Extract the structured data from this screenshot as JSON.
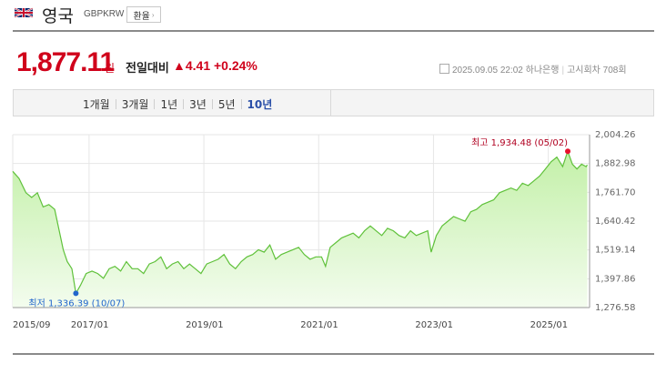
{
  "header": {
    "country": "영국",
    "currency_code": "GBPKRW",
    "fx_button_label": "환율",
    "fx_button_arrow": "›"
  },
  "quote": {
    "price": "1,877.11",
    "unit": "원",
    "change_label": "전일대비",
    "change_arrow": "▲",
    "change_value": "4.41",
    "change_percent": "+0.24%",
    "datetime": "2025.09.05 22:02",
    "source": "하나은행",
    "notice_round": "고시회차 708회"
  },
  "tabs": [
    {
      "label": "1개월",
      "active": false
    },
    {
      "label": "3개월",
      "active": false
    },
    {
      "label": "1년",
      "active": false
    },
    {
      "label": "3년",
      "active": false
    },
    {
      "label": "5년",
      "active": false
    },
    {
      "label": "10년",
      "active": true
    }
  ],
  "colors": {
    "up": "#d0021b",
    "line": "#5fc13a",
    "fill_top": "#c3f0a8",
    "fill_bottom": "#f3fcee",
    "min_marker": "#2266cc",
    "max_marker": "#e8102c"
  },
  "chart_data": {
    "type": "area",
    "ylim": [
      1276.58,
      2004.26
    ],
    "yticks": [
      "2,004.26",
      "1,882.98",
      "1,761.70",
      "1,640.42",
      "1,519.14",
      "1,397.86",
      "1,276.58"
    ],
    "xticks": [
      "2015/09",
      "2017/01",
      "2019/01",
      "2021/01",
      "2023/01",
      "2025/01"
    ],
    "max_label": "최고 1,934.48 (05/02)",
    "min_label": "최저 1,336.39 (10/07)",
    "series": [
      {
        "values": [
          [
            2015.67,
            1850
          ],
          [
            2015.78,
            1820
          ],
          [
            2015.9,
            1760
          ],
          [
            2016.0,
            1740
          ],
          [
            2016.1,
            1760
          ],
          [
            2016.2,
            1700
          ],
          [
            2016.3,
            1710
          ],
          [
            2016.4,
            1690
          ],
          [
            2016.48,
            1600
          ],
          [
            2016.55,
            1520
          ],
          [
            2016.62,
            1470
          ],
          [
            2016.7,
            1440
          ],
          [
            2016.77,
            1336.39
          ],
          [
            2016.85,
            1370
          ],
          [
            2016.95,
            1420
          ],
          [
            2017.05,
            1430
          ],
          [
            2017.15,
            1420
          ],
          [
            2017.25,
            1400
          ],
          [
            2017.35,
            1440
          ],
          [
            2017.45,
            1450
          ],
          [
            2017.55,
            1430
          ],
          [
            2017.65,
            1470
          ],
          [
            2017.75,
            1440
          ],
          [
            2017.85,
            1440
          ],
          [
            2017.95,
            1420
          ],
          [
            2018.05,
            1460
          ],
          [
            2018.15,
            1470
          ],
          [
            2018.25,
            1490
          ],
          [
            2018.35,
            1440
          ],
          [
            2018.45,
            1460
          ],
          [
            2018.55,
            1470
          ],
          [
            2018.65,
            1440
          ],
          [
            2018.75,
            1460
          ],
          [
            2018.85,
            1440
          ],
          [
            2018.95,
            1420
          ],
          [
            2019.05,
            1460
          ],
          [
            2019.15,
            1470
          ],
          [
            2019.25,
            1480
          ],
          [
            2019.35,
            1500
          ],
          [
            2019.45,
            1460
          ],
          [
            2019.55,
            1440
          ],
          [
            2019.65,
            1470
          ],
          [
            2019.75,
            1490
          ],
          [
            2019.85,
            1500
          ],
          [
            2019.95,
            1520
          ],
          [
            2020.05,
            1510
          ],
          [
            2020.15,
            1540
          ],
          [
            2020.25,
            1480
          ],
          [
            2020.35,
            1500
          ],
          [
            2020.45,
            1510
          ],
          [
            2020.55,
            1520
          ],
          [
            2020.65,
            1530
          ],
          [
            2020.75,
            1500
          ],
          [
            2020.85,
            1480
          ],
          [
            2020.95,
            1490
          ],
          [
            2021.05,
            1490
          ],
          [
            2021.12,
            1450
          ],
          [
            2021.2,
            1530
          ],
          [
            2021.3,
            1550
          ],
          [
            2021.4,
            1570
          ],
          [
            2021.5,
            1580
          ],
          [
            2021.6,
            1590
          ],
          [
            2021.7,
            1570
          ],
          [
            2021.8,
            1600
          ],
          [
            2021.9,
            1620
          ],
          [
            2022.0,
            1600
          ],
          [
            2022.1,
            1580
          ],
          [
            2022.2,
            1610
          ],
          [
            2022.3,
            1600
          ],
          [
            2022.4,
            1580
          ],
          [
            2022.5,
            1570
          ],
          [
            2022.6,
            1600
          ],
          [
            2022.7,
            1580
          ],
          [
            2022.8,
            1590
          ],
          [
            2022.9,
            1600
          ],
          [
            2022.96,
            1510
          ],
          [
            2023.05,
            1580
          ],
          [
            2023.15,
            1620
          ],
          [
            2023.25,
            1640
          ],
          [
            2023.35,
            1660
          ],
          [
            2023.45,
            1650
          ],
          [
            2023.55,
            1640
          ],
          [
            2023.65,
            1680
          ],
          [
            2023.75,
            1690
          ],
          [
            2023.85,
            1710
          ],
          [
            2023.95,
            1720
          ],
          [
            2024.05,
            1730
          ],
          [
            2024.15,
            1760
          ],
          [
            2024.25,
            1770
          ],
          [
            2024.35,
            1780
          ],
          [
            2024.45,
            1770
          ],
          [
            2024.55,
            1800
          ],
          [
            2024.65,
            1790
          ],
          [
            2024.75,
            1810
          ],
          [
            2024.85,
            1830
          ],
          [
            2024.95,
            1860
          ],
          [
            2025.05,
            1890
          ],
          [
            2025.15,
            1910
          ],
          [
            2025.25,
            1870
          ],
          [
            2025.34,
            1934.48
          ],
          [
            2025.42,
            1880
          ],
          [
            2025.5,
            1860
          ],
          [
            2025.58,
            1880
          ],
          [
            2025.66,
            1870
          ],
          [
            2025.68,
            1877.11
          ]
        ]
      }
    ]
  }
}
